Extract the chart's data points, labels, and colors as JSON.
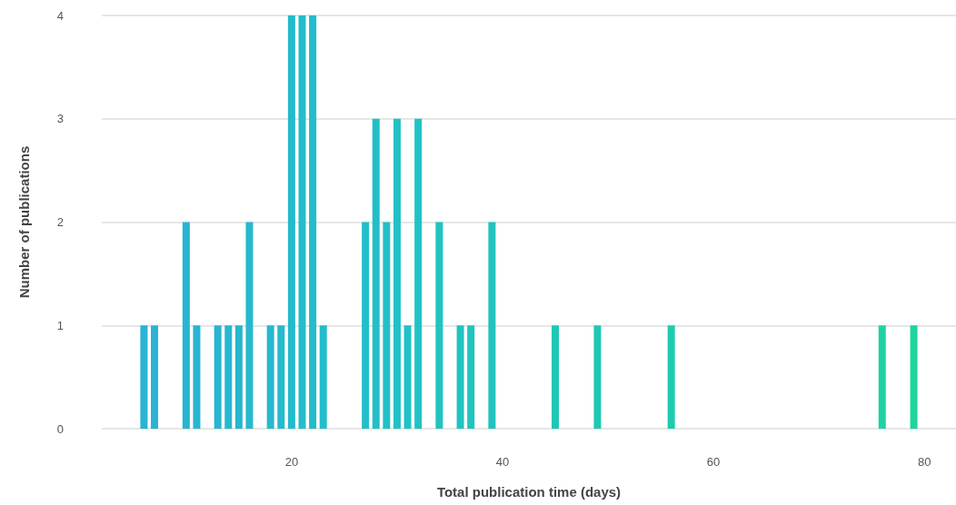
{
  "chart_data": {
    "type": "bar",
    "xlabel": "Total publication time (days)",
    "ylabel": "Number of publications",
    "x": [
      6,
      7,
      10,
      11,
      13,
      14,
      15,
      16,
      18,
      19,
      20,
      21,
      22,
      23,
      27,
      28,
      29,
      30,
      31,
      32,
      34,
      36,
      37,
      39,
      45,
      49,
      56,
      76,
      79
    ],
    "values": [
      1,
      1,
      2,
      1,
      1,
      1,
      1,
      2,
      1,
      1,
      4,
      4,
      4,
      1,
      2,
      3,
      2,
      3,
      1,
      3,
      2,
      1,
      1,
      2,
      1,
      1,
      1,
      1,
      1
    ],
    "colors": [
      "#2ab3d3",
      "#2ab3d3",
      "#29b5d1",
      "#29b5d1",
      "#28b6d0",
      "#28b7d0",
      "#27b7cf",
      "#27b8cf",
      "#26b9ce",
      "#25bacd",
      "#24bbcc",
      "#24bccc",
      "#23bccb",
      "#23bdcb",
      "#22bfc8",
      "#22bfc8",
      "#21c0c7",
      "#21c1c6",
      "#21c1c6",
      "#21c2c5",
      "#20c3c3",
      "#20c3c1",
      "#20c4c0",
      "#20c4bd",
      "#1fc7b5",
      "#1fc8b2",
      "#1fcbae",
      "#1ed3a3",
      "#1ed4a0"
    ],
    "xlim": [
      2,
      83
    ],
    "xticks": [
      20,
      40,
      60,
      80
    ],
    "ylim": [
      0,
      4
    ],
    "yticks": [
      0,
      1,
      2,
      3,
      4
    ],
    "grid": "y"
  }
}
